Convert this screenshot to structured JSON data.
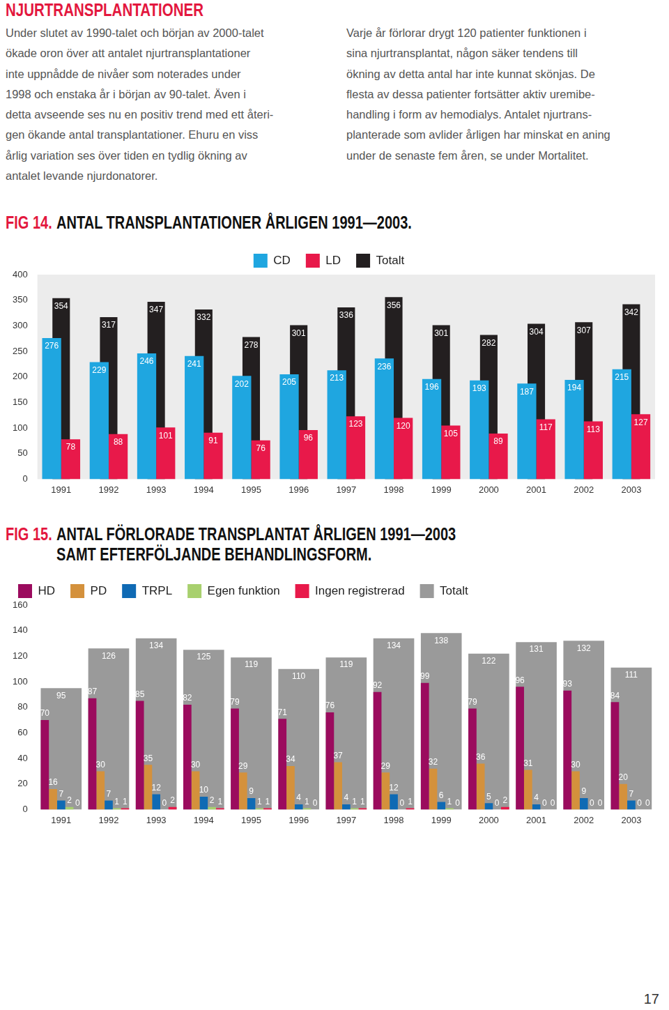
{
  "header": {
    "title": "NJURTRANSPLANTATIONER"
  },
  "columns": [
    [
      "Under slutet av 1990-talet och början av 2000-talet",
      "ökade oron över att antalet njurtransplantationer",
      "inte uppnådde de nivåer som noterades under",
      "1998 och enstaka år i början av 90-talet. Även i",
      "detta avseende ses nu en positiv trend med ett återi-",
      "gen ökande antal transplantationer. Ehuru en viss",
      "årlig variation ses över tiden en tydlig ökning av",
      "antalet levande njurdonatorer."
    ],
    [
      "Varje år förlorar drygt 120 patienter funktionen i",
      "sina njurtransplantat, någon säker tendens till",
      "ökning av detta antal har inte kunnat skönjas. De",
      "flesta av dessa patienter fortsätter aktiv uremibe-",
      "handling i form av hemodialys. Antalet njurtrans-",
      "planterade som avlider årligen har minskat en aning",
      "under de senaste fem åren, se under Mortalitet."
    ]
  ],
  "chart_data": [
    {
      "type": "bar",
      "title": "FIG 14. ANTAL TRANSPLANTATIONER ÅRLIGEN 1991—2003.",
      "categories": [
        "1991",
        "1992",
        "1993",
        "1994",
        "1995",
        "1996",
        "1997",
        "1998",
        "1999",
        "2000",
        "2001",
        "2002",
        "2003"
      ],
      "series": [
        {
          "name": "CD",
          "color": "#1fa6e0",
          "values": [
            276,
            229,
            246,
            241,
            202,
            205,
            213,
            236,
            196,
            193,
            187,
            194,
            215
          ]
        },
        {
          "name": "LD",
          "color": "#e8194a",
          "values": [
            78,
            88,
            101,
            91,
            76,
            96,
            123,
            120,
            105,
            89,
            117,
            113,
            127
          ]
        },
        {
          "name": "Totalt",
          "color": "#231f20",
          "values": [
            354,
            317,
            347,
            332,
            278,
            301,
            336,
            356,
            301,
            282,
            304,
            307,
            342
          ]
        }
      ],
      "ylim": [
        0,
        400
      ],
      "yticks": [
        0,
        50,
        100,
        150,
        200,
        250,
        300,
        350,
        400
      ],
      "grid": false,
      "legend": "top",
      "data_labels": true
    },
    {
      "type": "bar",
      "title": "FIG 15. ANTAL FÖRLORADE TRANSPLANTAT ÅRLIGEN 1991—2003\nSAMT EFTERFÖLJANDE BEHANDLINGSFORM.",
      "categories": [
        "1991",
        "1992",
        "1993",
        "1994",
        "1995",
        "1996",
        "1997",
        "1998",
        "1999",
        "2000",
        "2001",
        "2002",
        "2003"
      ],
      "series": [
        {
          "name": "HD",
          "color": "#9b0b5e",
          "values": [
            70,
            87,
            85,
            82,
            79,
            71,
            76,
            92,
            99,
            79,
            96,
            93,
            84
          ]
        },
        {
          "name": "PD",
          "color": "#d4913c",
          "values": [
            16,
            30,
            35,
            30,
            29,
            34,
            37,
            29,
            32,
            36,
            31,
            30,
            20
          ]
        },
        {
          "name": "TRPL",
          "color": "#0f6ab4",
          "values": [
            7,
            7,
            12,
            10,
            9,
            4,
            4,
            12,
            6,
            5,
            4,
            9,
            7
          ]
        },
        {
          "name": "Egen funktion",
          "color": "#a8d06e",
          "values": [
            2,
            1,
            0,
            2,
            1,
            1,
            1,
            0,
            1,
            0,
            0,
            0,
            0
          ]
        },
        {
          "name": "Ingen registrerad",
          "color": "#e8194a",
          "values": [
            0,
            1,
            2,
            1,
            1,
            0,
            1,
            1,
            0,
            2,
            0,
            0,
            0
          ]
        },
        {
          "name": "Totalt",
          "color": "#9a9a9a",
          "values": [
            95,
            126,
            134,
            125,
            119,
            110,
            119,
            134,
            138,
            122,
            131,
            132,
            111
          ]
        }
      ],
      "ylim": [
        0,
        160
      ],
      "yticks": [
        0,
        20,
        40,
        60,
        80,
        100,
        120,
        140,
        160
      ],
      "grid": false,
      "legend": "top-left",
      "data_labels": true
    }
  ],
  "page_number": "17"
}
